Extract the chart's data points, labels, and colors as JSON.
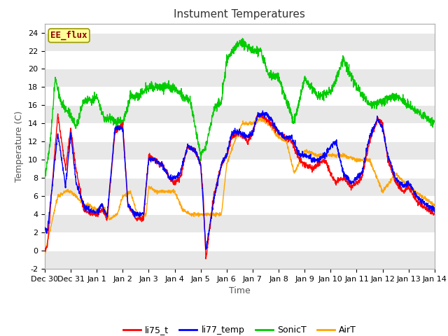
{
  "title": "Instument Temperatures",
  "xlabel": "Time",
  "ylabel": "Temperature (C)",
  "ylim": [
    -2,
    25
  ],
  "background_color": "#ffffff",
  "plot_bg_color": "#ffffff",
  "grid_color": "#dddddd",
  "annotation_text": "EE_flux",
  "annotation_color": "#8b0000",
  "annotation_bg": "#ffff99",
  "annotation_border": "#999900",
  "tick_labels": [
    "Dec 30",
    "Dec 31",
    "Jan 1",
    "Jan 2",
    "Jan 3",
    "Jan 4",
    "Jan 5",
    "Jan 6",
    "Jan 7",
    "Jan 8",
    "Jan 9",
    "Jan 10",
    "Jan 11",
    "Jan 12",
    "Jan 13",
    "Jan 14"
  ],
  "legend_labels": [
    "li75_t",
    "li77_temp",
    "SonicT",
    "AirT"
  ],
  "legend_colors": [
    "red",
    "blue",
    "#00cc00",
    "orange"
  ],
  "line_width": 1.0,
  "title_fontsize": 11,
  "axis_fontsize": 9,
  "tick_fontsize": 8
}
